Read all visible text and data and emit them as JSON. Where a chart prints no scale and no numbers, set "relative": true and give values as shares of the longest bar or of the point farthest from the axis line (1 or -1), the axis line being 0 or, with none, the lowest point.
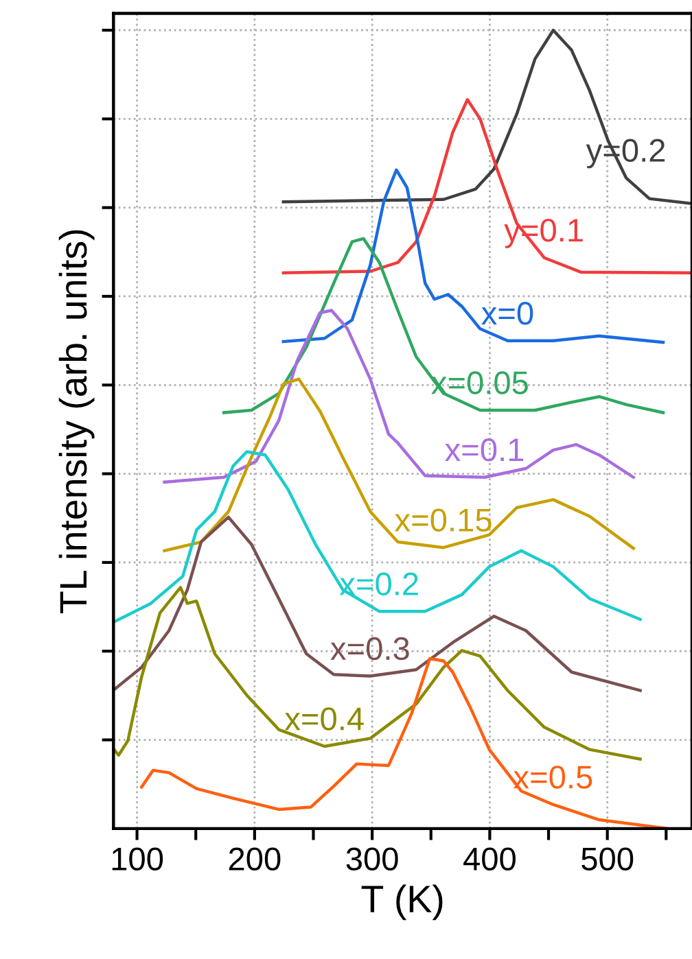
{
  "chart_data": {
    "type": "line",
    "xlabel": "T (K)",
    "ylabel": "TL intensity (arb. units)",
    "relative": true,
    "grid": true,
    "legend": false,
    "xlim": [
      80,
      572
    ],
    "xticks": [
      100,
      {
        "value": 150,
        "label": null
      },
      200,
      {
        "value": 250,
        "label": null
      },
      300,
      {
        "value": 350,
        "label": null
      },
      400,
      {
        "value": 450,
        "label": null
      },
      500,
      {
        "value": 550,
        "label": null
      }
    ],
    "series": [
      {
        "name": "y=0.2",
        "color": "#404040",
        "x": [
          224.5,
          360.7,
          388,
          403.5,
          423,
          438.5,
          454,
          469.6,
          485,
          500.8,
          516,
          535.8,
          570.8
        ],
        "values": [
          0.785,
          0.788,
          0.801,
          0.826,
          0.895,
          0.964,
          1.0,
          0.975,
          0.924,
          0.861,
          0.815,
          0.789,
          0.783
        ]
      },
      {
        "name": "y=0.1",
        "color": "#f03c3c",
        "x": [
          224.5,
          298.4,
          321.8,
          337.4,
          352.9,
          368.5,
          381,
          391.8,
          407.4,
          423,
          446.3,
          477.4,
          570.8
        ],
        "values": [
          0.696,
          0.698,
          0.709,
          0.735,
          0.792,
          0.872,
          0.913,
          0.889,
          0.821,
          0.758,
          0.715,
          0.697,
          0.696
        ]
      },
      {
        "name": "x=0",
        "color": "#1a6be0",
        "x": [
          224.5,
          259.5,
          282.9,
          298.4,
          310,
          320.6,
          329.6,
          337.4,
          345,
          352.9,
          364.6,
          376.3,
          391.8,
          415.2,
          454,
          493,
          547.5
        ],
        "values": [
          0.61,
          0.614,
          0.637,
          0.706,
          0.786,
          0.825,
          0.803,
          0.746,
          0.683,
          0.663,
          0.669,
          0.654,
          0.626,
          0.611,
          0.611,
          0.617,
          0.609
        ]
      },
      {
        "name": "x=0.05",
        "color": "#2fa860",
        "x": [
          173.9,
          197.3,
          220.6,
          244,
          267.3,
          282.9,
          292.6,
          306.2,
          321.8,
          337.4,
          360.7,
          391.8,
          438.5,
          469.6,
          493,
          516.3,
          547.5
        ],
        "values": [
          0.521,
          0.524,
          0.545,
          0.603,
          0.683,
          0.735,
          0.739,
          0.709,
          0.649,
          0.591,
          0.545,
          0.524,
          0.524,
          0.534,
          0.541,
          0.531,
          0.521
        ]
      },
      {
        "name": "x=0.1",
        "color": "#a86de0",
        "x": [
          123.3,
          173.9,
          201.2,
          220.6,
          236.2,
          255.6,
          265.4,
          279,
          298.4,
          314,
          321.8,
          345,
          395.7,
          430.7,
          454,
          473.5,
          493,
          522.2
        ],
        "values": [
          0.434,
          0.44,
          0.46,
          0.511,
          0.586,
          0.646,
          0.649,
          0.626,
          0.563,
          0.494,
          0.483,
          0.442,
          0.44,
          0.451,
          0.474,
          0.481,
          0.468,
          0.44
        ]
      },
      {
        "name": "x=0.15",
        "color": "#c8a000",
        "x": [
          123.3,
          154.5,
          177.8,
          197.3,
          212.8,
          224.5,
          237.7,
          255.6,
          275,
          298.4,
          321.8,
          360.7,
          399.6,
          423,
          454,
          485,
          522.2
        ],
        "values": [
          0.348,
          0.359,
          0.397,
          0.465,
          0.515,
          0.557,
          0.563,
          0.523,
          0.465,
          0.397,
          0.359,
          0.352,
          0.368,
          0.402,
          0.412,
          0.391,
          0.351
        ]
      },
      {
        "name": "x=0.2",
        "color": "#1ccccc",
        "x": [
          80.5,
          111.7,
          138.9,
          150.6,
          166.1,
          181.7,
          193.4,
          209,
          228.4,
          251.8,
          275.1,
          306.2,
          345,
          376.3,
          399.6,
          426.8,
          454,
          485,
          528
        ],
        "values": [
          0.259,
          0.282,
          0.316,
          0.374,
          0.397,
          0.454,
          0.472,
          0.468,
          0.425,
          0.356,
          0.299,
          0.272,
          0.272,
          0.293,
          0.328,
          0.348,
          0.328,
          0.288,
          0.262
        ]
      },
      {
        "name": "x=0.3",
        "color": "#7a5050",
        "x": [
          80.5,
          103.9,
          127.2,
          142.8,
          154.5,
          177.8,
          197.3,
          220.6,
          244,
          267.3,
          298.4,
          337.4,
          368.5,
          403.5,
          430.7,
          469.6,
          528
        ],
        "values": [
          0.174,
          0.202,
          0.248,
          0.299,
          0.359,
          0.39,
          0.356,
          0.288,
          0.219,
          0.193,
          0.191,
          0.199,
          0.233,
          0.266,
          0.248,
          0.196,
          0.173
        ]
      },
      {
        "name": "x=0.4",
        "color": "#8a8a00",
        "x": [
          80.5,
          84.4,
          92.2,
          103.9,
          119.5,
          137,
          142.8,
          150.6,
          166.1,
          193.4,
          220.6,
          259.5,
          298.4,
          337.4,
          360.7,
          376.3,
          391.8,
          415.2,
          446.3,
          485,
          528
        ],
        "values": [
          0.099,
          0.092,
          0.11,
          0.19,
          0.27,
          0.302,
          0.282,
          0.285,
          0.219,
          0.167,
          0.124,
          0.103,
          0.113,
          0.156,
          0.202,
          0.223,
          0.216,
          0.173,
          0.127,
          0.099,
          0.087
        ]
      },
      {
        "name": "x=0.5",
        "color": "#ff6010",
        "x": [
          103.9,
          113.6,
          127.2,
          150.6,
          181.7,
          220.6,
          247.9,
          267.3,
          286.8,
          314,
          333.5,
          349,
          360.7,
          368.5,
          384,
          399.6,
          426.8,
          454,
          493,
          551.4
        ],
        "values": [
          0.052,
          0.073,
          0.07,
          0.05,
          0.038,
          0.024,
          0.027,
          0.053,
          0.081,
          0.079,
          0.144,
          0.213,
          0.21,
          0.196,
          0.15,
          0.099,
          0.047,
          0.03,
          0.011,
          0.0
        ]
      }
    ]
  }
}
